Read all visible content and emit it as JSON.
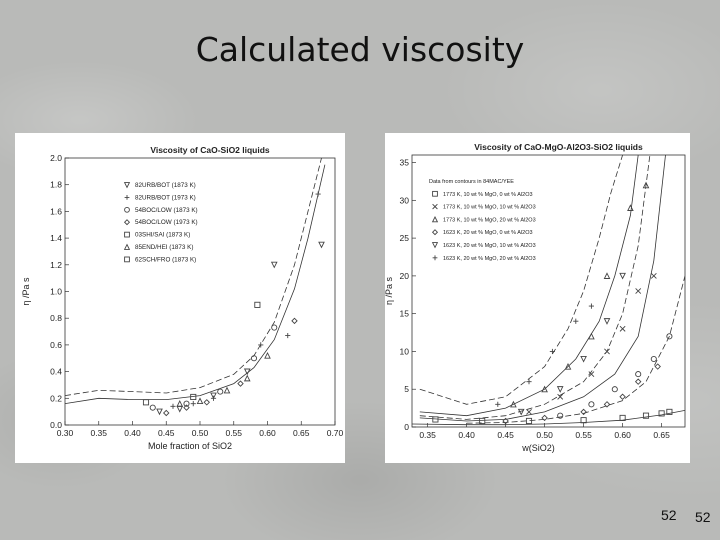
{
  "slide": {
    "title": "Calculated viscosity",
    "page_number": "52",
    "page_number_2": "52"
  },
  "chart_data": [
    {
      "type": "scatter",
      "title": "Viscosity of CaO-SiO2 liquids",
      "xlabel": "Mole fraction of SiO2",
      "ylabel": "η /Pa s",
      "xlim": [
        0.3,
        0.7
      ],
      "ylim": [
        0.0,
        2.0
      ],
      "xticks": [
        "0.30",
        "0.35",
        "0.40",
        "0.45",
        "0.50",
        "0.55",
        "0.60",
        "0.65",
        "0.70"
      ],
      "yticks": [
        "0.0",
        "0.2",
        "0.4",
        "0.6",
        "0.8",
        "1.0",
        "1.2",
        "1.4",
        "1.6",
        "1.8",
        "2.0"
      ],
      "legend": [
        {
          "marker": "triangle-down",
          "label": "82URB/BOT (1873 K)"
        },
        {
          "marker": "plus",
          "label": "82URB/BOT (1973 K)"
        },
        {
          "marker": "circle",
          "label": "54BOC/LOW (1873 K)"
        },
        {
          "marker": "diamond",
          "label": "54BOC/LOW (1973 K)"
        },
        {
          "marker": "square",
          "label": "03SHI/SAI (1873 K)"
        },
        {
          "marker": "triangle",
          "label": "85END/HEI (1873 K)"
        },
        {
          "marker": "square",
          "label": "62SCH/FRO (1873 K)"
        }
      ],
      "legend_position": "left",
      "curves": [
        {
          "style": "dashed",
          "x": [
            0.3,
            0.35,
            0.4,
            0.45,
            0.5,
            0.55,
            0.58,
            0.61,
            0.64,
            0.66,
            0.68
          ],
          "y": [
            0.22,
            0.26,
            0.25,
            0.24,
            0.28,
            0.38,
            0.52,
            0.77,
            1.2,
            1.6,
            2.0
          ]
        },
        {
          "style": "solid",
          "x": [
            0.3,
            0.35,
            0.4,
            0.45,
            0.5,
            0.55,
            0.58,
            0.61,
            0.64,
            0.66,
            0.685
          ],
          "y": [
            0.16,
            0.2,
            0.19,
            0.19,
            0.22,
            0.31,
            0.43,
            0.64,
            1.02,
            1.4,
            1.95
          ]
        }
      ],
      "series": [
        {
          "marker": "triangle-down",
          "points": [
            [
              0.44,
              0.1
            ],
            [
              0.47,
              0.12
            ],
            [
              0.52,
              0.22
            ],
            [
              0.57,
              0.4
            ],
            [
              0.61,
              1.2
            ],
            [
              0.68,
              1.35
            ]
          ]
        },
        {
          "marker": "plus",
          "points": [
            [
              0.46,
              0.14
            ],
            [
              0.49,
              0.16
            ],
            [
              0.52,
              0.2
            ],
            [
              0.59,
              0.6
            ],
            [
              0.63,
              0.67
            ],
            [
              0.675,
              1.73
            ]
          ]
        },
        {
          "marker": "circle",
          "points": [
            [
              0.43,
              0.13
            ],
            [
              0.48,
              0.16
            ],
            [
              0.53,
              0.25
            ],
            [
              0.58,
              0.5
            ],
            [
              0.61,
              0.73
            ]
          ]
        },
        {
          "marker": "diamond",
          "points": [
            [
              0.45,
              0.09
            ],
            [
              0.48,
              0.13
            ],
            [
              0.51,
              0.17
            ],
            [
              0.56,
              0.31
            ],
            [
              0.64,
              0.78
            ]
          ]
        },
        {
          "marker": "square",
          "points": [
            [
              0.42,
              0.17
            ],
            [
              0.49,
              0.21
            ],
            [
              0.585,
              0.9
            ]
          ]
        },
        {
          "marker": "triangle",
          "points": [
            [
              0.47,
              0.16
            ],
            [
              0.5,
              0.18
            ],
            [
              0.54,
              0.26
            ],
            [
              0.57,
              0.35
            ],
            [
              0.6,
              0.52
            ]
          ]
        }
      ]
    },
    {
      "type": "scatter",
      "title": "Viscosity of CaO-MgO-Al2O3-SiO2 liquids",
      "xlabel": "w(SiO2)",
      "ylabel": "η /Pa s",
      "xlim": [
        0.33,
        0.68
      ],
      "ylim": [
        0,
        36
      ],
      "xticks": [
        "0.35",
        "0.40",
        "0.45",
        "0.50",
        "0.55",
        "0.60",
        "0.65"
      ],
      "yticks": [
        "0",
        "5",
        "10",
        "15",
        "20",
        "25",
        "30",
        "35"
      ],
      "legend_header": "Data from contours in 84MAC/YEE",
      "legend": [
        {
          "marker": "square",
          "label": "1773 K, 10 wt % MgO, 0 wt % Al2O3"
        },
        {
          "marker": "x",
          "label": "1773 K, 10 wt % MgO, 10 wt % Al2O3"
        },
        {
          "marker": "triangle",
          "label": "1773 K, 10 wt % MgO, 20 wt % Al2O3"
        },
        {
          "marker": "diamond",
          "label": "1623 K, 20 wt % MgO, 0 wt % Al2O3"
        },
        {
          "marker": "triangle-down",
          "label": "1623 K, 20 wt % MgO, 10 wt % Al2O3"
        },
        {
          "marker": "plus",
          "label": "1623 K, 20 wt % MgO, 20 wt % Al2O3"
        }
      ],
      "legend_position": "top-left",
      "curves": [
        {
          "style": "dashed",
          "x": [
            0.34,
            0.4,
            0.45,
            0.5,
            0.53,
            0.55,
            0.57,
            0.585,
            0.6
          ],
          "y": [
            5,
            3,
            4,
            8,
            13,
            18,
            25,
            31,
            36
          ]
        },
        {
          "style": "solid",
          "x": [
            0.34,
            0.4,
            0.45,
            0.5,
            0.54,
            0.57,
            0.59,
            0.61,
            0.62
          ],
          "y": [
            2,
            1.5,
            2.5,
            5,
            9,
            14,
            20,
            28,
            36
          ]
        },
        {
          "style": "dashed",
          "x": [
            0.34,
            0.4,
            0.45,
            0.5,
            0.55,
            0.58,
            0.6,
            0.62,
            0.635
          ],
          "y": [
            1.5,
            1.0,
            1.5,
            3,
            6,
            10,
            15,
            24,
            36
          ]
        },
        {
          "style": "solid",
          "x": [
            0.34,
            0.4,
            0.45,
            0.5,
            0.55,
            0.59,
            0.62,
            0.64,
            0.655
          ],
          "y": [
            1.2,
            0.8,
            1.0,
            2,
            4,
            7,
            12,
            22,
            36
          ]
        },
        {
          "style": "dashed",
          "x": [
            0.4,
            0.45,
            0.5,
            0.55,
            0.6,
            0.63,
            0.66,
            0.68
          ],
          "y": [
            0.5,
            0.6,
            1.0,
            1.8,
            3.5,
            6,
            12,
            20
          ]
        },
        {
          "style": "solid",
          "x": [
            0.33,
            0.4,
            0.45,
            0.5,
            0.55,
            0.6,
            0.65,
            0.68
          ],
          "y": [
            0.4,
            0.3,
            0.3,
            0.4,
            0.6,
            0.9,
            1.6,
            2.2
          ]
        }
      ],
      "series": [
        {
          "marker": "square",
          "points": [
            [
              0.36,
              1
            ],
            [
              0.42,
              0.8
            ],
            [
              0.48,
              0.8
            ],
            [
              0.55,
              0.9
            ],
            [
              0.6,
              1.2
            ],
            [
              0.63,
              1.5
            ],
            [
              0.65,
              1.8
            ],
            [
              0.66,
              2
            ]
          ]
        },
        {
          "marker": "x",
          "points": [
            [
              0.48,
              2
            ],
            [
              0.52,
              4
            ],
            [
              0.56,
              7
            ],
            [
              0.58,
              10
            ],
            [
              0.6,
              13
            ],
            [
              0.62,
              18
            ],
            [
              0.64,
              20
            ]
          ]
        },
        {
          "marker": "triangle",
          "points": [
            [
              0.46,
              3
            ],
            [
              0.5,
              5
            ],
            [
              0.53,
              8
            ],
            [
              0.56,
              12
            ],
            [
              0.58,
              20
            ],
            [
              0.61,
              29
            ],
            [
              0.63,
              32
            ]
          ]
        },
        {
          "marker": "diamond",
          "points": [
            [
              0.45,
              0.8
            ],
            [
              0.5,
              1.2
            ],
            [
              0.55,
              2
            ],
            [
              0.58,
              3
            ],
            [
              0.6,
              4
            ],
            [
              0.62,
              6
            ],
            [
              0.645,
              8
            ]
          ]
        },
        {
          "marker": "triangle-down",
          "points": [
            [
              0.47,
              2
            ],
            [
              0.52,
              5
            ],
            [
              0.55,
              9
            ],
            [
              0.58,
              14
            ],
            [
              0.6,
              20
            ]
          ]
        },
        {
          "marker": "plus",
          "points": [
            [
              0.44,
              3
            ],
            [
              0.48,
              6
            ],
            [
              0.51,
              10
            ],
            [
              0.54,
              14
            ],
            [
              0.56,
              16
            ]
          ]
        },
        {
          "marker": "circle",
          "points": [
            [
              0.52,
              1.5
            ],
            [
              0.56,
              3
            ],
            [
              0.59,
              5
            ],
            [
              0.62,
              7
            ],
            [
              0.64,
              9
            ],
            [
              0.66,
              12
            ]
          ]
        }
      ]
    }
  ]
}
